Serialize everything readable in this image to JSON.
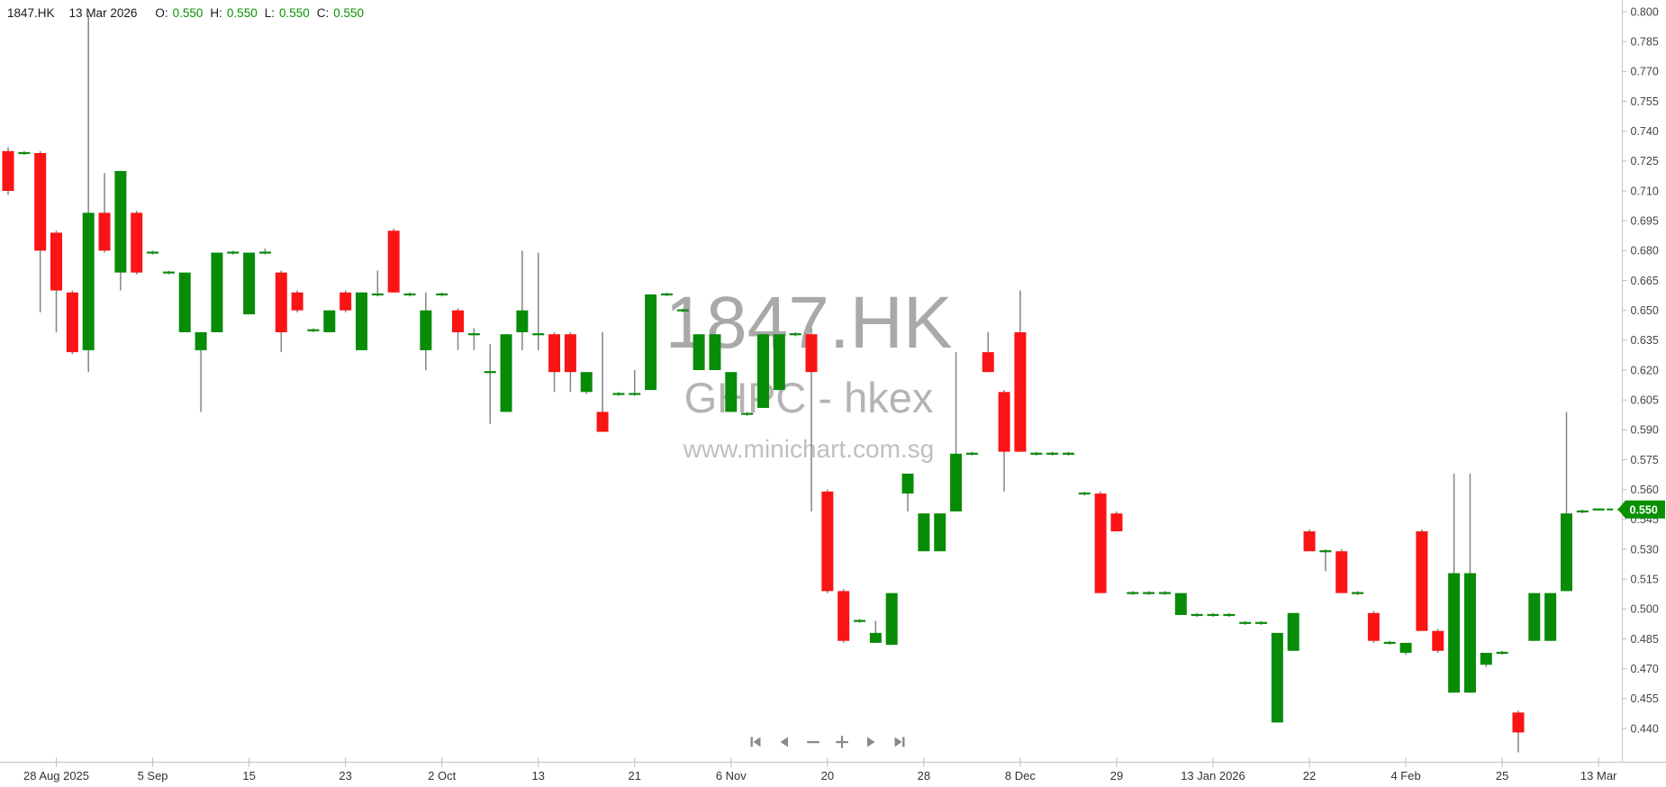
{
  "header": {
    "symbol": "1847.HK",
    "date": "13 Mar 2026",
    "open_label": "O:",
    "open": "0.550",
    "high_label": "H:",
    "high": "0.550",
    "low_label": "L:",
    "low": "0.550",
    "close_label": "C:",
    "close": "0.550"
  },
  "watermark": {
    "line1": "1847.HK",
    "line2": "GHPC - hkex",
    "line3": "www.minichart.com.sg"
  },
  "toolbar": {
    "icons": [
      "skip-to-start-icon",
      "step-back-icon",
      "zoom-out-icon",
      "zoom-in-icon",
      "step-forward-icon",
      "skip-to-end-icon"
    ]
  },
  "price_marker": {
    "label": "0.550",
    "value": 0.55,
    "color": "#089000",
    "text_color": "#ffffff"
  },
  "chart_data": {
    "type": "candlestick",
    "title": "1847.HK",
    "subtitle": "GHPC - hkex",
    "source": "www.minichart.com.sg",
    "ylim": [
      0.4325,
      0.8045
    ],
    "grid": false,
    "colors": {
      "up": "#088c08",
      "down": "#fa1414",
      "wick": "#848484",
      "axis": "#cccccc",
      "tick_text": "#444444"
    },
    "price_axis_ticks": [
      "0.800",
      "0.785",
      "0.770",
      "0.755",
      "0.740",
      "0.725",
      "0.710",
      "0.695",
      "0.680",
      "0.665",
      "0.650",
      "0.635",
      "0.620",
      "0.605",
      "0.590",
      "0.575",
      "0.560",
      "0.545",
      "0.530",
      "0.515",
      "0.500",
      "0.485",
      "0.470",
      "0.455",
      "0.440"
    ],
    "date_axis_labels": [
      {
        "index": 3,
        "label": "28 Aug 2025"
      },
      {
        "index": 9,
        "label": "5 Sep"
      },
      {
        "index": 15,
        "label": "15"
      },
      {
        "index": 21,
        "label": "23"
      },
      {
        "index": 27,
        "label": "2 Oct"
      },
      {
        "index": 33,
        "label": "13"
      },
      {
        "index": 39,
        "label": "21"
      },
      {
        "index": 45,
        "label": "6 Nov"
      },
      {
        "index": 51,
        "label": "20"
      },
      {
        "index": 57,
        "label": "28"
      },
      {
        "index": 63,
        "label": "8 Dec"
      },
      {
        "index": 69,
        "label": "29"
      },
      {
        "index": 75,
        "label": "13 Jan 2026"
      },
      {
        "index": 81,
        "label": "22"
      },
      {
        "index": 87,
        "label": "4 Feb"
      },
      {
        "index": 93,
        "label": "25"
      },
      {
        "index": 99,
        "label": "13 Mar"
      }
    ],
    "candle_format": [
      "open",
      "high",
      "low",
      "close"
    ],
    "candles": [
      [
        0.73,
        0.732,
        0.708,
        0.71
      ],
      [
        0.729,
        0.73,
        0.728,
        0.729
      ],
      [
        0.729,
        0.73,
        0.649,
        0.68
      ],
      [
        0.689,
        0.69,
        0.639,
        0.66
      ],
      [
        0.659,
        0.66,
        0.628,
        0.629
      ],
      [
        0.63,
        0.798,
        0.619,
        0.699
      ],
      [
        0.699,
        0.719,
        0.679,
        0.68
      ],
      [
        0.669,
        0.72,
        0.66,
        0.72
      ],
      [
        0.699,
        0.7,
        0.668,
        0.669
      ],
      [
        0.679,
        0.68,
        0.678,
        0.679
      ],
      [
        0.669,
        0.67,
        0.668,
        0.669
      ],
      [
        0.639,
        0.669,
        0.639,
        0.669
      ],
      [
        0.63,
        0.639,
        0.599,
        0.639
      ],
      [
        0.639,
        0.679,
        0.639,
        0.679
      ],
      [
        0.679,
        0.68,
        0.678,
        0.679
      ],
      [
        0.648,
        0.679,
        0.648,
        0.679
      ],
      [
        0.679,
        0.681,
        0.678,
        0.679
      ],
      [
        0.669,
        0.67,
        0.629,
        0.639
      ],
      [
        0.659,
        0.66,
        0.649,
        0.65
      ],
      [
        0.64,
        0.641,
        0.639,
        0.64
      ],
      [
        0.639,
        0.65,
        0.639,
        0.65
      ],
      [
        0.659,
        0.66,
        0.649,
        0.65
      ],
      [
        0.63,
        0.659,
        0.63,
        0.659
      ],
      [
        0.658,
        0.67,
        0.657,
        0.658
      ],
      [
        0.69,
        0.691,
        0.659,
        0.659
      ],
      [
        0.658,
        0.659,
        0.657,
        0.658
      ],
      [
        0.63,
        0.659,
        0.62,
        0.65
      ],
      [
        0.658,
        0.659,
        0.657,
        0.658
      ],
      [
        0.65,
        0.651,
        0.63,
        0.639
      ],
      [
        0.638,
        0.641,
        0.63,
        0.638
      ],
      [
        0.619,
        0.633,
        0.593,
        0.619
      ],
      [
        0.599,
        0.638,
        0.599,
        0.638
      ],
      [
        0.639,
        0.68,
        0.63,
        0.65
      ],
      [
        0.638,
        0.679,
        0.63,
        0.638
      ],
      [
        0.638,
        0.639,
        0.609,
        0.619
      ],
      [
        0.638,
        0.639,
        0.609,
        0.619
      ],
      [
        0.609,
        0.619,
        0.608,
        0.619
      ],
      [
        0.599,
        0.639,
        0.589,
        0.589
      ],
      [
        0.608,
        0.609,
        0.607,
        0.608
      ],
      [
        0.608,
        0.62,
        0.607,
        0.608
      ],
      [
        0.61,
        0.658,
        0.61,
        0.658
      ],
      [
        0.658,
        0.659,
        0.657,
        0.658
      ],
      [
        0.65,
        0.651,
        0.649,
        0.65
      ],
      [
        0.62,
        0.638,
        0.62,
        0.638
      ],
      [
        0.62,
        0.638,
        0.62,
        0.638
      ],
      [
        0.599,
        0.619,
        0.599,
        0.619
      ],
      [
        0.598,
        0.599,
        0.597,
        0.598
      ],
      [
        0.601,
        0.638,
        0.601,
        0.638
      ],
      [
        0.61,
        0.638,
        0.61,
        0.638
      ],
      [
        0.638,
        0.639,
        0.637,
        0.638
      ],
      [
        0.638,
        0.641,
        0.549,
        0.619
      ],
      [
        0.559,
        0.56,
        0.508,
        0.509
      ],
      [
        0.509,
        0.51,
        0.483,
        0.484
      ],
      [
        0.494,
        0.495,
        0.493,
        0.494
      ],
      [
        0.483,
        0.494,
        0.483,
        0.488
      ],
      [
        0.482,
        0.508,
        0.482,
        0.508
      ],
      [
        0.558,
        0.568,
        0.549,
        0.568
      ],
      [
        0.529,
        0.548,
        0.529,
        0.548
      ],
      [
        0.529,
        0.548,
        0.529,
        0.548
      ],
      [
        0.549,
        0.629,
        0.549,
        0.578
      ],
      [
        0.578,
        0.579,
        0.577,
        0.578
      ],
      [
        0.629,
        0.639,
        0.619,
        0.619
      ],
      [
        0.609,
        0.61,
        0.559,
        0.579
      ],
      [
        0.639,
        0.66,
        0.579,
        0.579
      ],
      [
        0.578,
        0.579,
        0.577,
        0.578
      ],
      [
        0.578,
        0.579,
        0.577,
        0.578
      ],
      [
        0.578,
        0.579,
        0.577,
        0.578
      ],
      [
        0.558,
        0.559,
        0.557,
        0.558
      ],
      [
        0.558,
        0.559,
        0.508,
        0.508
      ],
      [
        0.548,
        0.549,
        0.539,
        0.539
      ],
      [
        0.508,
        0.509,
        0.507,
        0.508
      ],
      [
        0.508,
        0.509,
        0.507,
        0.508
      ],
      [
        0.508,
        0.509,
        0.507,
        0.508
      ],
      [
        0.497,
        0.508,
        0.497,
        0.508
      ],
      [
        0.497,
        0.498,
        0.496,
        0.497
      ],
      [
        0.497,
        0.498,
        0.496,
        0.497
      ],
      [
        0.497,
        0.498,
        0.496,
        0.497
      ],
      [
        0.493,
        0.494,
        0.492,
        0.493
      ],
      [
        0.493,
        0.494,
        0.492,
        0.493
      ],
      [
        0.443,
        0.488,
        0.443,
        0.488
      ],
      [
        0.479,
        0.498,
        0.479,
        0.498
      ],
      [
        0.539,
        0.54,
        0.529,
        0.529
      ],
      [
        0.529,
        0.53,
        0.519,
        0.529
      ],
      [
        0.529,
        0.53,
        0.508,
        0.508
      ],
      [
        0.508,
        0.509,
        0.507,
        0.508
      ],
      [
        0.498,
        0.499,
        0.483,
        0.484
      ],
      [
        0.483,
        0.484,
        0.482,
        0.483
      ],
      [
        0.478,
        0.483,
        0.477,
        0.483
      ],
      [
        0.539,
        0.54,
        0.489,
        0.489
      ],
      [
        0.489,
        0.49,
        0.478,
        0.479
      ],
      [
        0.458,
        0.568,
        0.458,
        0.518
      ],
      [
        0.458,
        0.568,
        0.458,
        0.518
      ],
      [
        0.472,
        0.478,
        0.471,
        0.478
      ],
      [
        0.478,
        0.479,
        0.477,
        0.478
      ],
      [
        0.448,
        0.449,
        0.428,
        0.438
      ],
      [
        0.484,
        0.508,
        0.484,
        0.508
      ],
      [
        0.484,
        0.508,
        0.484,
        0.508
      ],
      [
        0.509,
        0.599,
        0.509,
        0.548
      ],
      [
        0.549,
        0.55,
        0.548,
        0.549
      ],
      [
        0.55,
        0.55,
        0.55,
        0.55
      ]
    ],
    "current_price": 0.55
  }
}
